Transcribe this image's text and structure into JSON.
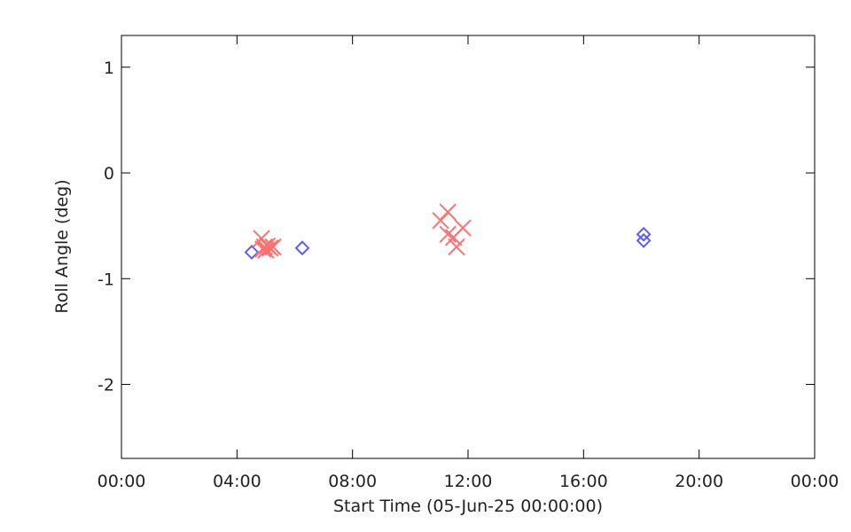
{
  "chart_data": {
    "type": "scatter",
    "xlabel": "Start Time (05-Jun-25 00:00:00)",
    "ylabel": "Roll Angle (deg)",
    "xlim": [
      0,
      24
    ],
    "ylim": [
      -2.7,
      1.3
    ],
    "xticks": [
      {
        "value": 0,
        "label": "00:00"
      },
      {
        "value": 4,
        "label": "04:00"
      },
      {
        "value": 8,
        "label": "08:00"
      },
      {
        "value": 12,
        "label": "12:00"
      },
      {
        "value": 16,
        "label": "16:00"
      },
      {
        "value": 20,
        "label": "20:00"
      },
      {
        "value": 24,
        "label": "00:00"
      }
    ],
    "yticks": [
      -2,
      -1,
      0,
      1
    ],
    "series": [
      {
        "color": "#5b5bff",
        "marker": "diamond",
        "x": [
          4.51,
          6.26,
          18.08,
          18.08
        ],
        "values": [
          -0.75,
          -0.71,
          -0.58,
          -0.64
        ]
      },
      {
        "color": "#ff7070",
        "marker": "x",
        "x": [
          4.85,
          4.9,
          4.95,
          5.0,
          5.05,
          5.15,
          5.25,
          11.05,
          11.3,
          11.3,
          11.5,
          11.6,
          11.82
        ],
        "values": [
          -0.62,
          -0.72,
          -0.7,
          -0.73,
          -0.69,
          -0.71,
          -0.7,
          -0.45,
          -0.37,
          -0.58,
          -0.61,
          -0.7,
          -0.52
        ]
      }
    ]
  }
}
